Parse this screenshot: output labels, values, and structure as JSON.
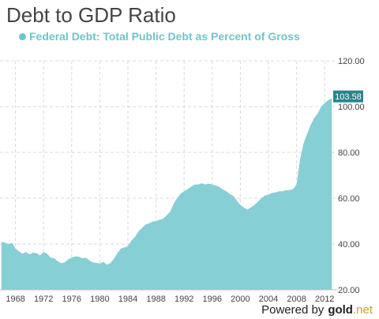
{
  "colors": {
    "area": "#86cfd5",
    "legend_text": "#6fc5cc",
    "badge_bg": "#2b8489",
    "grid": "#d9d9d9",
    "axis_text": "#444444"
  },
  "footer": {
    "powered_by": "Powered by",
    "brand_gold": "gold",
    "brand_net": ".net"
  },
  "chart_data": {
    "type": "area",
    "title": "Debt to GDP Ratio",
    "series": [
      {
        "name": "Federal Debt: Total Public Debt as Percent of Gross",
        "points": [
          [
            1966,
            41.0
          ],
          [
            1966.5,
            40.6
          ],
          [
            1967,
            40.0
          ],
          [
            1967.5,
            40.5
          ],
          [
            1968,
            38.0
          ],
          [
            1968.5,
            36.8
          ],
          [
            1969,
            35.7
          ],
          [
            1969.5,
            36.5
          ],
          [
            1970,
            35.5
          ],
          [
            1970.5,
            36.2
          ],
          [
            1971,
            36.0
          ],
          [
            1971.5,
            35.0
          ],
          [
            1972,
            36.5
          ],
          [
            1972.5,
            35.8
          ],
          [
            1973,
            34.0
          ],
          [
            1973.5,
            33.8
          ],
          [
            1974,
            32.5
          ],
          [
            1974.5,
            31.6
          ],
          [
            1975,
            32.0
          ],
          [
            1975.5,
            33.3
          ],
          [
            1976,
            34.0
          ],
          [
            1976.5,
            34.6
          ],
          [
            1977,
            34.5
          ],
          [
            1977.5,
            33.8
          ],
          [
            1978,
            34.0
          ],
          [
            1978.5,
            32.8
          ],
          [
            1979,
            32.0
          ],
          [
            1979.5,
            31.7
          ],
          [
            1980,
            31.5
          ],
          [
            1980.5,
            32.2
          ],
          [
            1981,
            31.0
          ],
          [
            1981.5,
            31.6
          ],
          [
            1982,
            33.5
          ],
          [
            1982.5,
            36.0
          ],
          [
            1983,
            38.0
          ],
          [
            1983.5,
            38.5
          ],
          [
            1984,
            39.0
          ],
          [
            1984.5,
            41.5
          ],
          [
            1985,
            43.0
          ],
          [
            1985.5,
            45.5
          ],
          [
            1986,
            47.0
          ],
          [
            1986.5,
            48.5
          ],
          [
            1987,
            49.0
          ],
          [
            1987.5,
            49.8
          ],
          [
            1988,
            50.0
          ],
          [
            1988.5,
            50.6
          ],
          [
            1989,
            51.0
          ],
          [
            1989.5,
            52.5
          ],
          [
            1990,
            54.0
          ],
          [
            1990.5,
            57.5
          ],
          [
            1991,
            60.0
          ],
          [
            1991.5,
            62.0
          ],
          [
            1992,
            63.0
          ],
          [
            1992.5,
            64.0
          ],
          [
            1993,
            65.0
          ],
          [
            1993.5,
            66.0
          ],
          [
            1994,
            66.0
          ],
          [
            1994.5,
            66.5
          ],
          [
            1995,
            66.0
          ],
          [
            1995.5,
            66.3
          ],
          [
            1996,
            66.0
          ],
          [
            1996.5,
            65.5
          ],
          [
            1997,
            65.0
          ],
          [
            1997.5,
            63.8
          ],
          [
            1998,
            63.0
          ],
          [
            1998.5,
            61.8
          ],
          [
            1999,
            61.0
          ],
          [
            1999.5,
            59.0
          ],
          [
            2000,
            57.0
          ],
          [
            2000.5,
            56.0
          ],
          [
            2001,
            55.0
          ],
          [
            2001.5,
            56.0
          ],
          [
            2002,
            57.0
          ],
          [
            2002.5,
            58.5
          ],
          [
            2003,
            60.0
          ],
          [
            2003.5,
            61.2
          ],
          [
            2004,
            61.5
          ],
          [
            2004.5,
            62.3
          ],
          [
            2005,
            62.5
          ],
          [
            2005.5,
            63.0
          ],
          [
            2006,
            63.0
          ],
          [
            2006.5,
            63.5
          ],
          [
            2007,
            63.5
          ],
          [
            2007.5,
            64.0
          ],
          [
            2008,
            66.0
          ],
          [
            2008.5,
            77.0
          ],
          [
            2009,
            84.0
          ],
          [
            2009.5,
            88.0
          ],
          [
            2010,
            92.0
          ],
          [
            2010.5,
            95.0
          ],
          [
            2011,
            97.0
          ],
          [
            2011.5,
            100.0
          ],
          [
            2012,
            101.5
          ],
          [
            2012.5,
            102.8
          ],
          [
            2013,
            103.58
          ]
        ]
      }
    ],
    "ylim": [
      20,
      120
    ],
    "yticks": [
      "20.00",
      "40.00",
      "60.00",
      "80.00",
      "100.00",
      "120.00"
    ],
    "xticks": [
      "1968",
      "1972",
      "1976",
      "1980",
      "1984",
      "1988",
      "1992",
      "1996",
      "2000",
      "2004",
      "2008",
      "2012"
    ],
    "last_value_label": "103.58",
    "grid": "on",
    "legend": "top-left"
  }
}
